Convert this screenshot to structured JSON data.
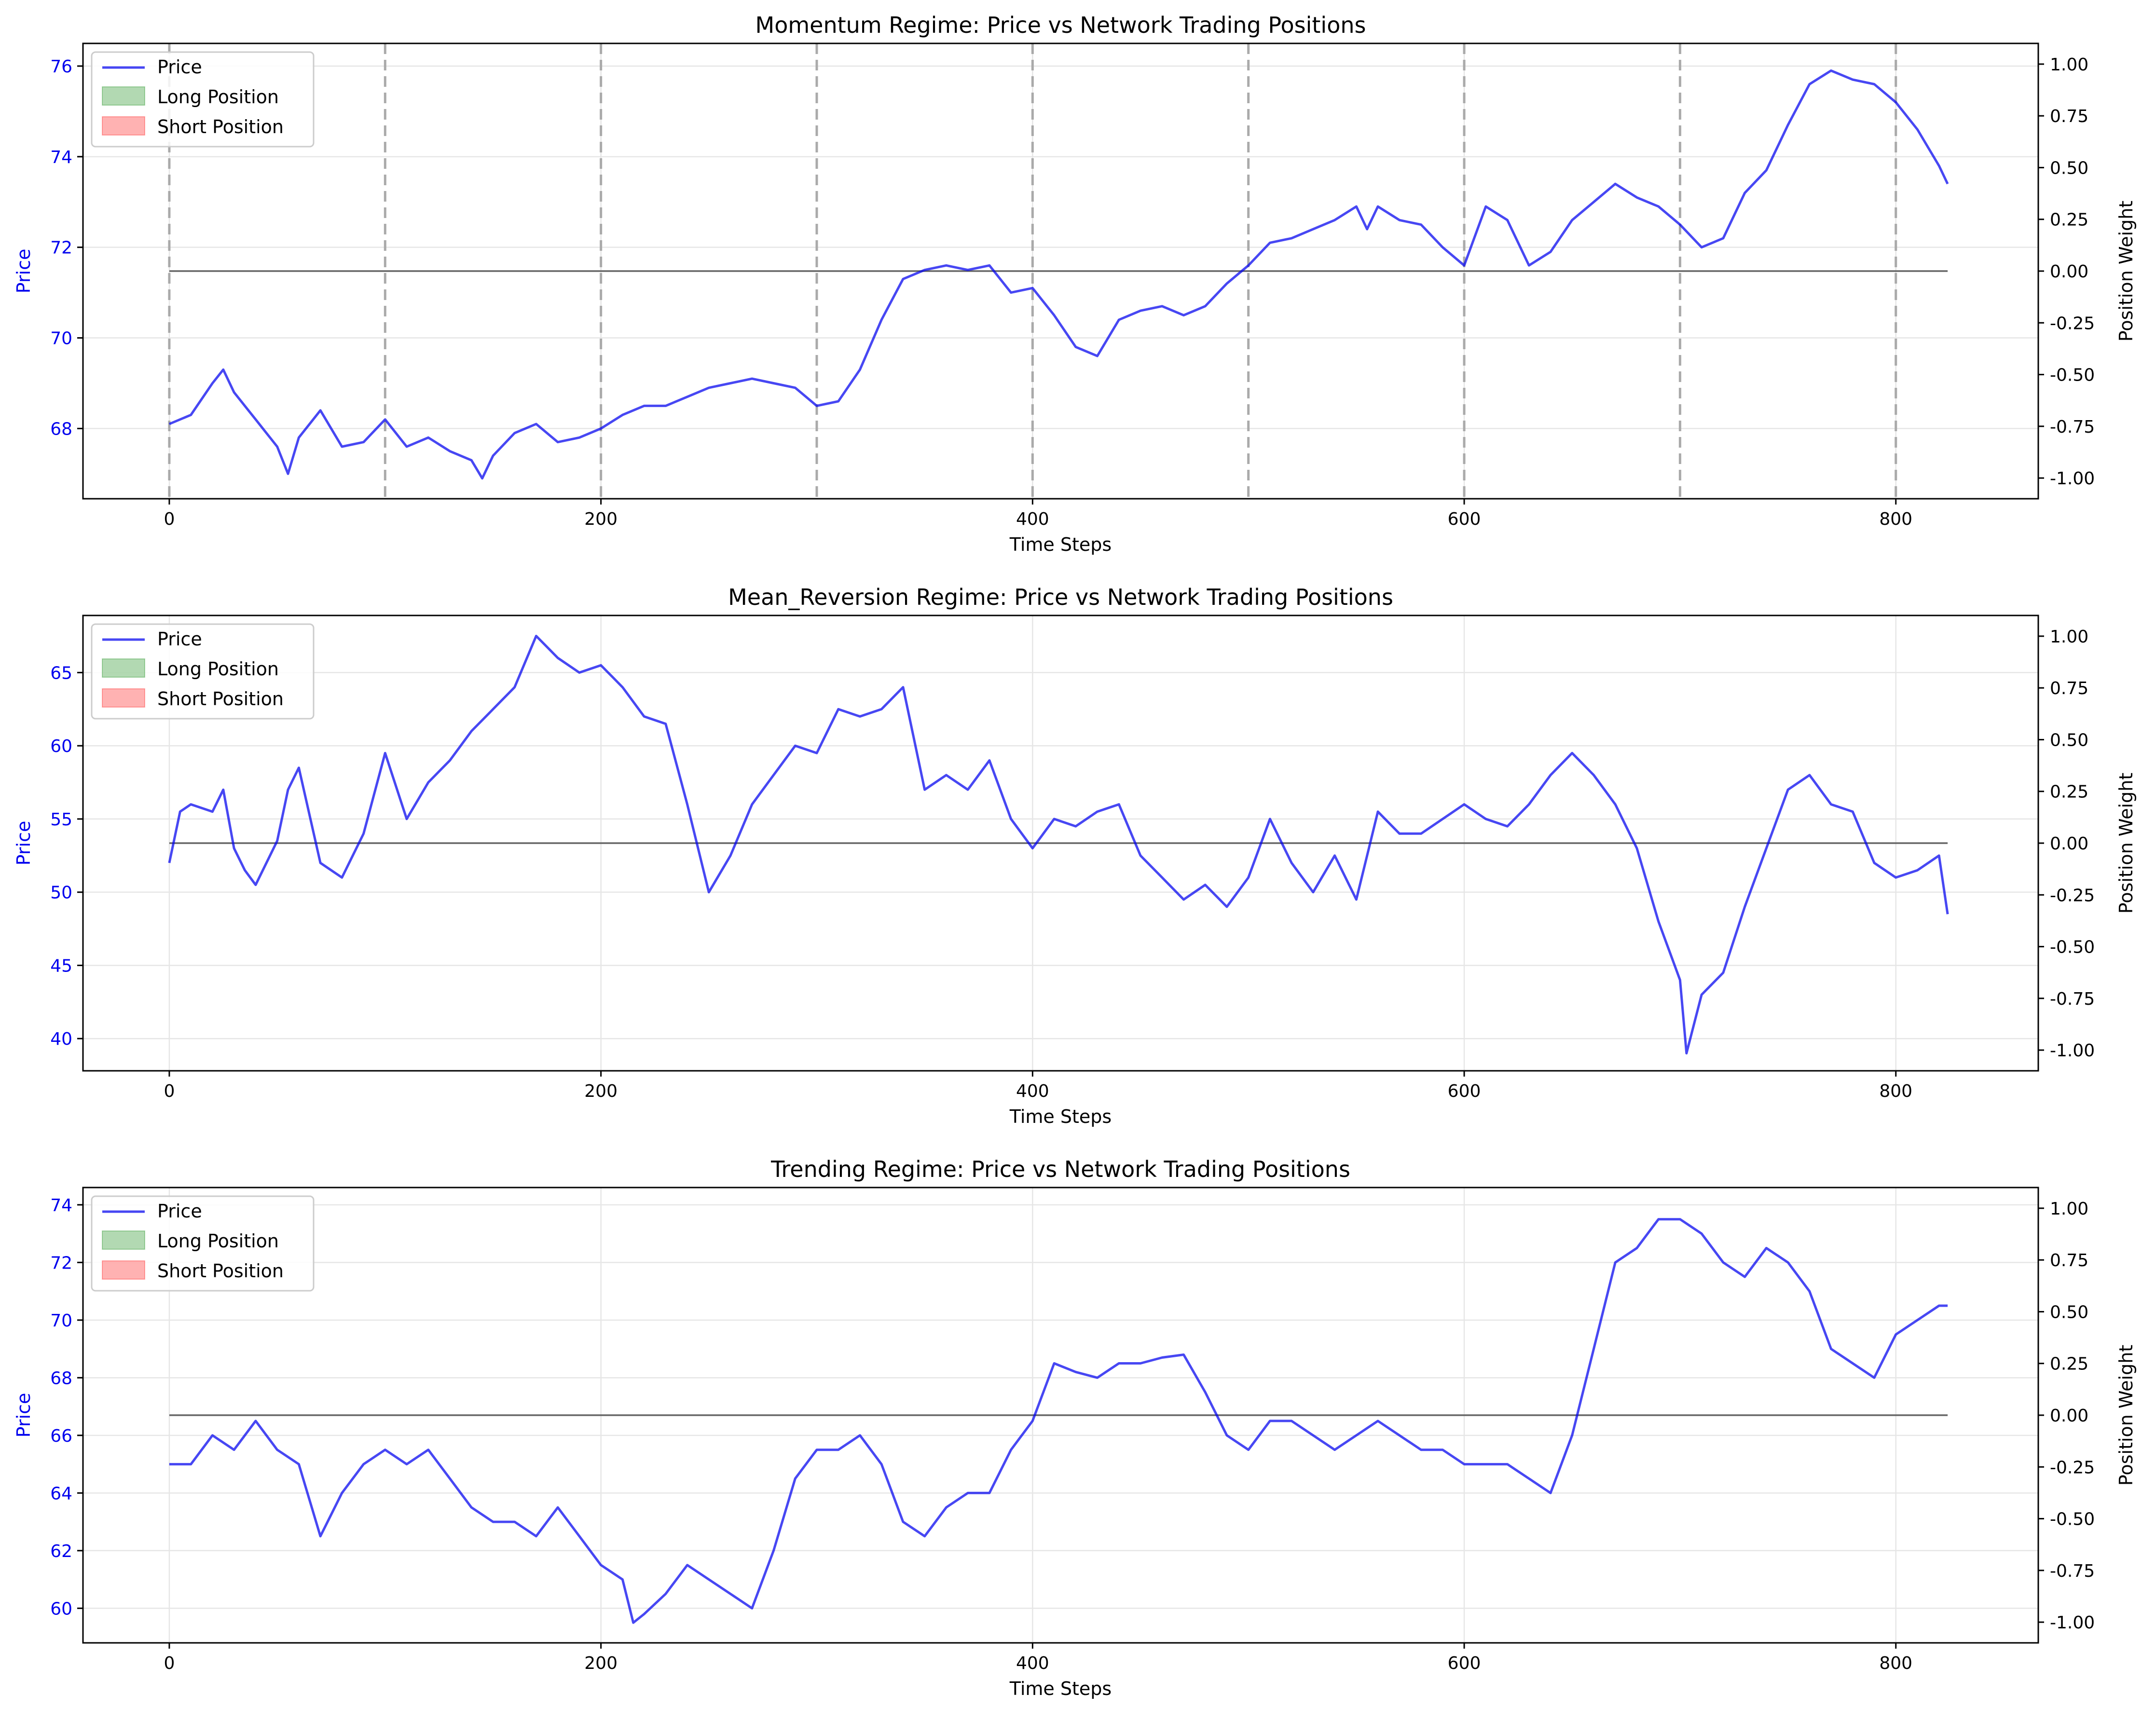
{
  "chart_data": [
    {
      "type": "line",
      "title": "Momentum Regime: Price vs Network Trading Positions",
      "xlabel": "Time Steps",
      "ylabel": "Price",
      "y2label": "Position Weight",
      "xlim": [
        -40,
        866
      ],
      "ylim": [
        66.45,
        76.5
      ],
      "y2lim": [
        -1.1,
        1.1
      ],
      "xticks": [
        0,
        200,
        400,
        600,
        800
      ],
      "yticks": [
        68,
        70,
        72,
        74,
        76
      ],
      "y2ticks": [
        -1.0,
        -0.75,
        -0.5,
        -0.25,
        0.0,
        0.25,
        0.5,
        0.75,
        1.0
      ],
      "grid": true,
      "legend": {
        "placement": "upper-left",
        "entries": [
          "Price",
          "Long Position",
          "Short Position"
        ]
      },
      "vlines": [
        0,
        100,
        200,
        300,
        400,
        500,
        600,
        700,
        800
      ],
      "position_line": {
        "from": 0,
        "to": 824,
        "value": 0.0
      },
      "series": [
        {
          "name": "Price",
          "color": "#0000ee",
          "x": [
            0,
            10,
            20,
            25,
            30,
            40,
            50,
            55,
            60,
            70,
            80,
            90,
            100,
            110,
            120,
            130,
            140,
            145,
            150,
            160,
            170,
            180,
            190,
            200,
            210,
            220,
            230,
            240,
            250,
            260,
            270,
            280,
            290,
            300,
            310,
            320,
            330,
            340,
            350,
            360,
            370,
            380,
            390,
            400,
            410,
            420,
            430,
            440,
            450,
            460,
            470,
            480,
            490,
            500,
            510,
            520,
            530,
            540,
            550,
            555,
            560,
            570,
            580,
            590,
            600,
            610,
            620,
            630,
            640,
            650,
            660,
            670,
            680,
            690,
            700,
            710,
            720,
            730,
            740,
            750,
            760,
            770,
            780,
            790,
            800,
            810,
            820,
            824
          ],
          "values": [
            68.1,
            68.3,
            69.0,
            69.3,
            68.8,
            68.2,
            67.6,
            67.0,
            67.8,
            68.4,
            67.6,
            67.7,
            68.2,
            67.6,
            67.8,
            67.5,
            67.3,
            66.9,
            67.4,
            67.9,
            68.1,
            67.7,
            67.8,
            68.0,
            68.3,
            68.5,
            68.5,
            68.7,
            68.9,
            69.0,
            69.1,
            69.0,
            68.9,
            68.5,
            68.6,
            69.3,
            70.4,
            71.3,
            71.5,
            71.6,
            71.5,
            71.6,
            71.0,
            71.1,
            70.5,
            69.8,
            69.6,
            70.4,
            70.6,
            70.7,
            70.5,
            70.7,
            71.2,
            71.6,
            72.1,
            72.2,
            72.4,
            72.6,
            72.9,
            72.4,
            72.9,
            72.6,
            72.5,
            72.0,
            71.6,
            72.9,
            72.6,
            71.6,
            71.9,
            72.6,
            73.0,
            73.4,
            73.1,
            72.9,
            72.5,
            72.0,
            72.2,
            73.2,
            73.7,
            74.7,
            75.6,
            75.9,
            75.7,
            75.6,
            75.2,
            74.6,
            73.8,
            73.4
          ]
        }
      ]
    },
    {
      "type": "line",
      "title": "Mean_Reversion Regime: Price vs Network Trading Positions",
      "xlabel": "Time Steps",
      "ylabel": "Price",
      "y2label": "Position Weight",
      "xlim": [
        -40,
        866
      ],
      "ylim": [
        37.8,
        68.9
      ],
      "y2lim": [
        -1.1,
        1.1
      ],
      "xticks": [
        0,
        200,
        400,
        600,
        800
      ],
      "yticks": [
        40,
        45,
        50,
        55,
        60,
        65
      ],
      "y2ticks": [
        -1.0,
        -0.75,
        -0.5,
        -0.25,
        0.0,
        0.25,
        0.5,
        0.75,
        1.0
      ],
      "grid": true,
      "legend": {
        "placement": "upper-left",
        "entries": [
          "Price",
          "Long Position",
          "Short Position"
        ]
      },
      "vlines": [],
      "position_line": {
        "from": 0,
        "to": 824,
        "value": 0.0
      },
      "series": [
        {
          "name": "Price",
          "color": "#0000ee",
          "x": [
            0,
            5,
            10,
            20,
            25,
            30,
            35,
            40,
            50,
            55,
            60,
            70,
            80,
            90,
            100,
            110,
            120,
            130,
            140,
            150,
            160,
            170,
            180,
            190,
            200,
            210,
            220,
            230,
            240,
            250,
            260,
            270,
            280,
            290,
            300,
            310,
            320,
            330,
            340,
            350,
            360,
            370,
            380,
            390,
            400,
            410,
            420,
            430,
            440,
            450,
            460,
            470,
            480,
            490,
            500,
            510,
            520,
            530,
            540,
            550,
            560,
            570,
            580,
            590,
            600,
            610,
            620,
            630,
            640,
            650,
            660,
            670,
            680,
            690,
            700,
            703,
            710,
            720,
            730,
            740,
            750,
            760,
            770,
            780,
            790,
            800,
            810,
            820,
            824
          ],
          "values": [
            52.0,
            55.5,
            56.0,
            55.5,
            57.0,
            53.0,
            51.5,
            50.5,
            53.5,
            57.0,
            58.5,
            52.0,
            51.0,
            54.0,
            59.5,
            55.0,
            57.5,
            59.0,
            61.0,
            62.5,
            64.0,
            67.5,
            66.0,
            65.0,
            65.5,
            64.0,
            62.0,
            61.5,
            56.0,
            50.0,
            52.5,
            56.0,
            58.0,
            60.0,
            59.5,
            62.5,
            62.0,
            62.5,
            64.0,
            57.0,
            58.0,
            57.0,
            59.0,
            55.0,
            53.0,
            55.0,
            54.5,
            55.5,
            56.0,
            52.5,
            51.0,
            49.5,
            50.5,
            49.0,
            51.0,
            55.0,
            52.0,
            50.0,
            52.5,
            49.5,
            55.5,
            54.0,
            54.0,
            55.0,
            56.0,
            55.0,
            54.5,
            56.0,
            58.0,
            59.5,
            58.0,
            56.0,
            53.0,
            48.0,
            44.0,
            39.0,
            43.0,
            44.5,
            49.0,
            53.0,
            57.0,
            58.0,
            56.0,
            55.5,
            52.0,
            51.0,
            51.5,
            52.5,
            48.5
          ]
        }
      ]
    },
    {
      "type": "line",
      "title": "Trending Regime: Price vs Network Trading Positions",
      "xlabel": "Time Steps",
      "ylabel": "Price",
      "y2label": "Position Weight",
      "xlim": [
        -40,
        866
      ],
      "ylim": [
        58.8,
        74.6
      ],
      "y2lim": [
        -1.1,
        1.1
      ],
      "xticks": [
        0,
        200,
        400,
        600,
        800
      ],
      "yticks": [
        60,
        62,
        64,
        66,
        68,
        70,
        72,
        74
      ],
      "y2ticks": [
        -1.0,
        -0.75,
        -0.5,
        -0.25,
        0.0,
        0.25,
        0.5,
        0.75,
        1.0
      ],
      "grid": true,
      "legend": {
        "placement": "upper-left",
        "entries": [
          "Price",
          "Long Position",
          "Short Position"
        ]
      },
      "vlines": [],
      "position_line": {
        "from": 0,
        "to": 824,
        "value": 0.0
      },
      "series": [
        {
          "name": "Price",
          "color": "#0000ee",
          "x": [
            0,
            10,
            20,
            30,
            40,
            50,
            60,
            70,
            80,
            90,
            100,
            110,
            120,
            130,
            140,
            150,
            160,
            170,
            180,
            190,
            200,
            210,
            215,
            220,
            230,
            240,
            250,
            260,
            270,
            280,
            290,
            300,
            310,
            320,
            330,
            340,
            350,
            360,
            370,
            380,
            390,
            400,
            410,
            420,
            430,
            440,
            450,
            460,
            470,
            480,
            490,
            500,
            510,
            520,
            530,
            540,
            550,
            560,
            570,
            580,
            590,
            600,
            610,
            620,
            630,
            640,
            650,
            660,
            670,
            680,
            690,
            700,
            710,
            720,
            730,
            740,
            750,
            760,
            770,
            780,
            790,
            800,
            810,
            820,
            824
          ],
          "values": [
            65.0,
            65.0,
            66.0,
            65.5,
            66.5,
            65.5,
            65.0,
            62.5,
            64.0,
            65.0,
            65.5,
            65.0,
            65.5,
            64.5,
            63.5,
            63.0,
            63.0,
            62.5,
            63.5,
            62.5,
            61.5,
            61.0,
            59.5,
            59.8,
            60.5,
            61.5,
            61.0,
            60.5,
            60.0,
            62.0,
            64.5,
            65.5,
            65.5,
            66.0,
            65.0,
            63.0,
            62.5,
            63.5,
            64.0,
            64.0,
            65.5,
            66.5,
            68.5,
            68.2,
            68.0,
            68.5,
            68.5,
            68.7,
            68.8,
            67.5,
            66.0,
            65.5,
            66.5,
            66.5,
            66.0,
            65.5,
            66.0,
            66.5,
            66.0,
            65.5,
            65.5,
            65.0,
            65.0,
            65.0,
            64.5,
            64.0,
            66.0,
            69.0,
            72.0,
            72.5,
            73.5,
            73.5,
            73.0,
            72.0,
            71.5,
            72.5,
            72.0,
            71.0,
            69.0,
            68.5,
            68.0,
            69.5,
            70.0,
            70.5,
            70.5
          ]
        }
      ]
    }
  ]
}
